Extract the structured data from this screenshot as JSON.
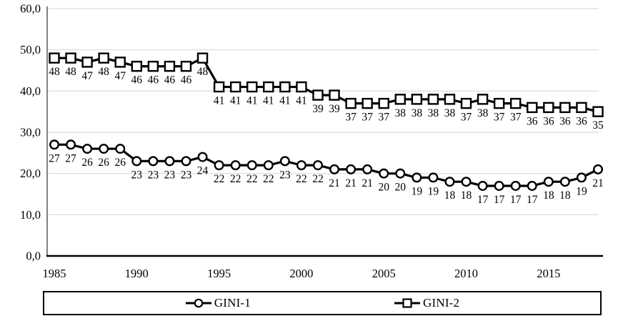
{
  "chart_data": {
    "type": "line",
    "title": "",
    "xlabel": "",
    "ylabel": "",
    "x": [
      1985,
      1986,
      1987,
      1988,
      1989,
      1990,
      1991,
      1992,
      1993,
      1994,
      1995,
      1996,
      1997,
      1998,
      1999,
      2000,
      2001,
      2002,
      2003,
      2004,
      2005,
      2006,
      2007,
      2008,
      2009,
      2010,
      2011,
      2012,
      2013,
      2014,
      2015,
      2016,
      2017,
      2018
    ],
    "series": [
      {
        "name": "GINI-1",
        "marker": "circle",
        "values": [
          27,
          27,
          26,
          26,
          26,
          23,
          23,
          23,
          23,
          24,
          22,
          22,
          22,
          22,
          23,
          22,
          22,
          21,
          21,
          21,
          20,
          20,
          19,
          19,
          18,
          18,
          17,
          17,
          17,
          17,
          18,
          18,
          19,
          21
        ]
      },
      {
        "name": "GINI-2",
        "marker": "square",
        "values": [
          48,
          48,
          47,
          48,
          47,
          46,
          46,
          46,
          46,
          48,
          41,
          41,
          41,
          41,
          41,
          41,
          39,
          39,
          37,
          37,
          37,
          38,
          38,
          38,
          38,
          37,
          38,
          37,
          37,
          36,
          36,
          36,
          36,
          35
        ]
      }
    ],
    "ylim": [
      0,
      60
    ],
    "ytick_step": 10,
    "ytick_labels": [
      "0,0",
      "10,0",
      "20,0",
      "30,0",
      "40,0",
      "50,0",
      "60,0"
    ],
    "xticks": [
      1985,
      1990,
      1995,
      2000,
      2005,
      2010,
      2015
    ],
    "xtick_labels": [
      "1985",
      "1990",
      "1995",
      "2000",
      "2005",
      "2010",
      "2015"
    ],
    "grid": "horizontal",
    "show_data_labels": true,
    "legend_position": "bottom-box",
    "colors": {
      "series_line": "#000000",
      "marker_fill": "#ffffff",
      "gridline": "#d9d9d9",
      "y_axis_line": "#737373",
      "x_axis_line": "#000000",
      "text": "#000000",
      "legend_border": "#000000",
      "background": "#ffffff"
    }
  },
  "legend": {
    "items": [
      {
        "label": "GINI-1",
        "marker": "circle"
      },
      {
        "label": "GINI-2",
        "marker": "square"
      }
    ]
  }
}
